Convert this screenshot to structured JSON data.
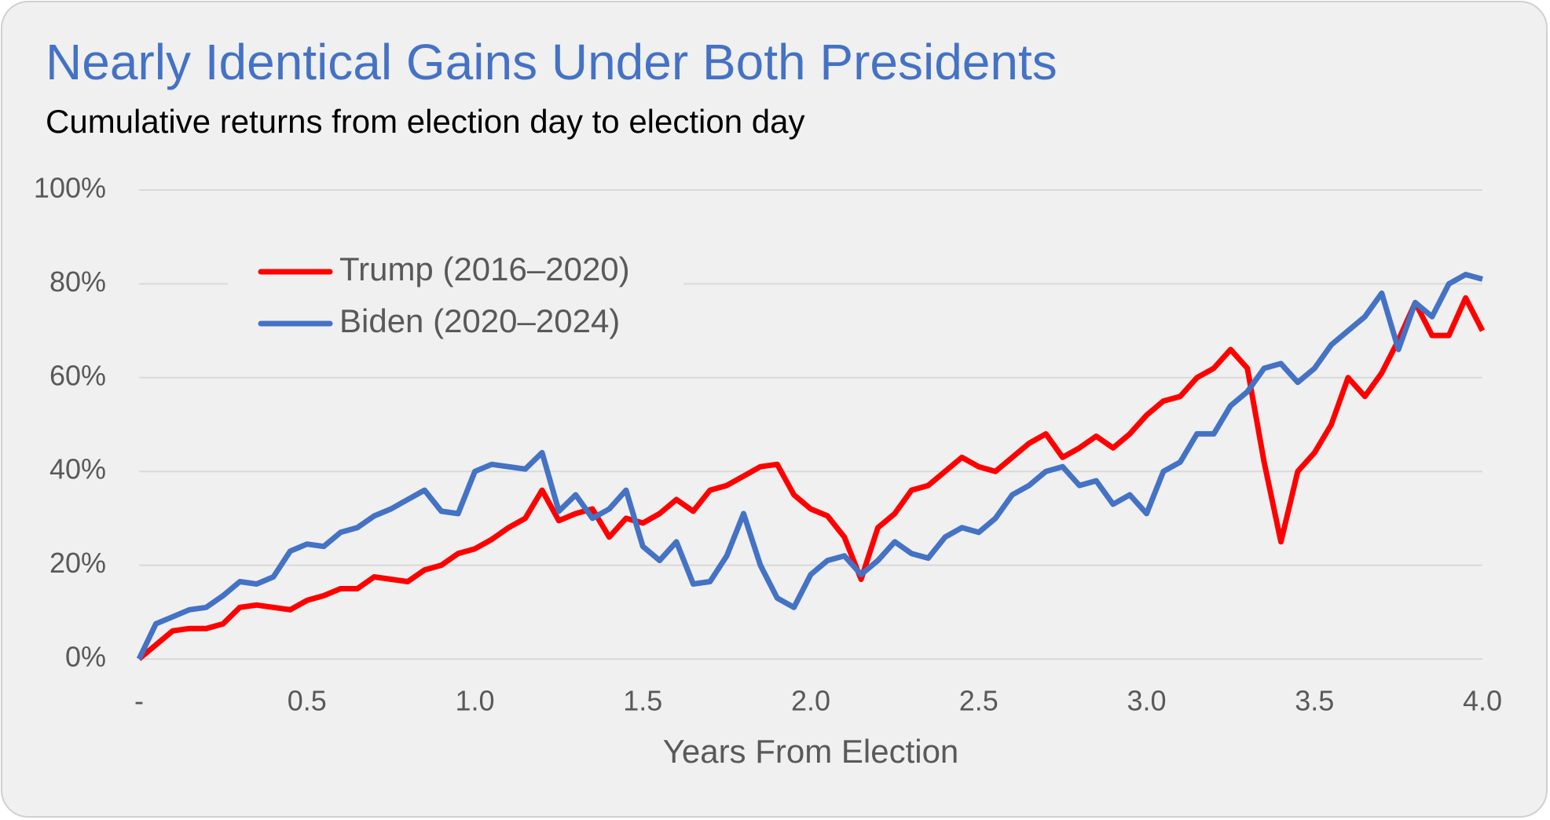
{
  "chart_data": {
    "type": "line",
    "title": "Nearly Identical Gains Under Both Presidents",
    "subtitle": "Cumulative returns from election day to election day",
    "x_label": "Years From Election",
    "x": [
      0,
      0.05,
      0.1,
      0.15,
      0.2,
      0.25,
      0.3,
      0.35,
      0.4,
      0.45,
      0.5,
      0.55,
      0.6,
      0.65,
      0.7,
      0.75,
      0.8,
      0.85,
      0.9,
      0.95,
      1,
      1.05,
      1.1,
      1.15,
      1.2,
      1.25,
      1.3,
      1.35,
      1.4,
      1.45,
      1.5,
      1.55,
      1.6,
      1.65,
      1.7,
      1.75,
      1.8,
      1.85,
      1.9,
      1.95,
      2,
      2.05,
      2.1,
      2.15,
      2.2,
      2.25,
      2.3,
      2.35,
      2.4,
      2.45,
      2.5,
      2.55,
      2.6,
      2.65,
      2.7,
      2.75,
      2.8,
      2.85,
      2.9,
      2.95,
      3,
      3.05,
      3.1,
      3.15,
      3.2,
      3.25,
      3.3,
      3.35,
      3.4,
      3.45,
      3.5,
      3.55,
      3.6,
      3.65,
      3.7,
      3.75,
      3.8,
      3.85,
      3.9,
      3.95,
      4
    ],
    "series": [
      {
        "name": "Trump (2016–2020)",
        "color": "#ff0000",
        "values": [
          0,
          3,
          6,
          6.5,
          6.5,
          7.5,
          11,
          11.5,
          11,
          10.5,
          12.5,
          13.5,
          15,
          15,
          17.5,
          17,
          16.5,
          19,
          20,
          22.5,
          23.5,
          25.5,
          28,
          30,
          36,
          29.5,
          31,
          32,
          26,
          30,
          29,
          31,
          34,
          31.5,
          36,
          37,
          39,
          41,
          41.5,
          35,
          32,
          30.5,
          26,
          17,
          28,
          31,
          36,
          37,
          40,
          43,
          41,
          40,
          43,
          46,
          48,
          43,
          45,
          47.5,
          45,
          48,
          52,
          55,
          56,
          60,
          62,
          66,
          62,
          42,
          25,
          40,
          44,
          50,
          60,
          56,
          61,
          68,
          76,
          69,
          69,
          77,
          70
        ]
      },
      {
        "name": "Biden (2020–2024)",
        "color": "#4472c4",
        "values": [
          0,
          7.5,
          9,
          10.5,
          11,
          13.5,
          16.5,
          16,
          17.5,
          23,
          24.5,
          24,
          27,
          28,
          30.5,
          32,
          34,
          36,
          31.5,
          31,
          40,
          41.5,
          41,
          40.5,
          44,
          31.5,
          35,
          30,
          32,
          36,
          24,
          21,
          25,
          16,
          16.5,
          22,
          31,
          20,
          13,
          11,
          18,
          21,
          22,
          18,
          21,
          25,
          22.5,
          21.5,
          26,
          28,
          27,
          30,
          35,
          37,
          40,
          41,
          37,
          38,
          33,
          35,
          31,
          40,
          42,
          48,
          48,
          54,
          57,
          62,
          63,
          59,
          62,
          67,
          70,
          73,
          78,
          66,
          76,
          73,
          80,
          82,
          81
        ]
      }
    ],
    "xlim": [
      0,
      4
    ],
    "xticks": [
      {
        "value": 0,
        "label": "-"
      },
      0.5,
      {
        "value": 1,
        "label": "1.0"
      },
      1.5,
      {
        "value": 2,
        "label": "2.0"
      },
      2.5,
      {
        "value": 3,
        "label": "3.0"
      },
      3.5,
      {
        "value": 4,
        "label": "4.0"
      }
    ],
    "ylim": [
      0,
      100
    ],
    "yticks": [
      {
        "value": 0,
        "label": "0%"
      },
      {
        "value": 20,
        "label": "20%"
      },
      {
        "value": 40,
        "label": "40%"
      },
      {
        "value": 60,
        "label": "60%"
      },
      {
        "value": 80,
        "label": "80%"
      },
      {
        "value": 100,
        "label": "100%"
      }
    ],
    "grid": true,
    "legend": "upper left"
  }
}
